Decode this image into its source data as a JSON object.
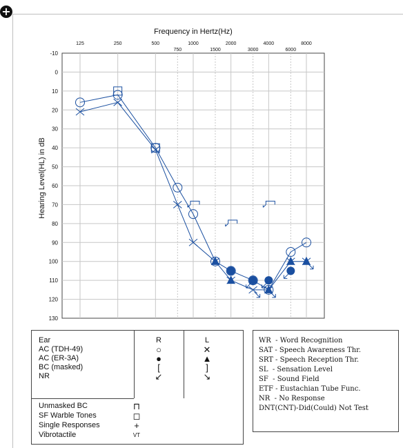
{
  "colors": {
    "line": "#1a4fa0",
    "grid": "#c6c6c6",
    "axis": "#444444"
  },
  "chart_data": {
    "type": "line",
    "title": "Frequency in Hertz(Hz)",
    "ylabel": "Hearing Level(HL) in dB",
    "ylim": [
      -10,
      130
    ],
    "y_inverted": true,
    "y_ticks": [
      "-10",
      "0",
      "10",
      "20",
      "30",
      "40",
      "50",
      "60",
      "70",
      "80",
      "90",
      "100",
      "110",
      "120",
      "130"
    ],
    "x_ticks_main": [
      "125",
      "250",
      "500",
      "1000",
      "2000",
      "4000",
      "8000"
    ],
    "x_ticks_inter": [
      "750",
      "1500",
      "3000",
      "6000"
    ],
    "grid": true,
    "series": [
      {
        "ear": "right",
        "kind": "AC (TDH-49)",
        "marker": "circle-open",
        "x": [
          125,
          250,
          500,
          750,
          1000,
          1500,
          2000,
          3000,
          4000,
          6000,
          8000
        ],
        "y": [
          16,
          12,
          40,
          61,
          75,
          100,
          105,
          110,
          115,
          95,
          90
        ],
        "connect": true
      },
      {
        "ear": "left",
        "kind": "AC (TDH-49)",
        "marker": "x",
        "x": [
          125,
          250,
          500,
          750,
          1000,
          1500,
          2000,
          3000,
          4000,
          6000,
          8000
        ],
        "y": [
          21,
          16,
          41,
          70,
          90,
          100,
          110,
          115,
          115,
          100,
          100
        ],
        "connect": true
      },
      {
        "ear": "right",
        "kind": "AC (ER-3A)",
        "marker": "circle-filled",
        "x": [
          2000,
          3000,
          4000,
          6000
        ],
        "y": [
          105,
          110,
          110,
          105
        ],
        "connect": false
      },
      {
        "ear": "left",
        "kind": "AC (ER-3A)",
        "marker": "triangle-filled",
        "x": [
          1500,
          2000,
          3000,
          4000,
          6000,
          8000
        ],
        "y": [
          100,
          110,
          110,
          115,
          100,
          100
        ],
        "connect": false
      },
      {
        "kind": "SF Warble Tones",
        "marker": "square-open",
        "x": [
          250,
          500
        ],
        "y": [
          10,
          40
        ],
        "connect": false
      },
      {
        "ear": "right",
        "kind": "NR",
        "marker": "arrow-left",
        "x": [
          3000,
          4000,
          6000
        ],
        "y": [
          110,
          110,
          105
        ],
        "connect": false
      },
      {
        "ear": "left",
        "kind": "NR",
        "marker": "arrow-right",
        "x": [
          3000,
          4000,
          8000
        ],
        "y": [
          115,
          115,
          100
        ],
        "connect": false
      },
      {
        "ear": "right",
        "kind": "Unmasked BC",
        "marker": "bracket-right",
        "x": [
          1000,
          2000,
          4000
        ],
        "y": [
          70,
          80,
          70
        ],
        "connect": false
      }
    ]
  },
  "legend": {
    "header": {
      "ear": "Ear",
      "r": "R",
      "l": "L"
    },
    "rows": [
      {
        "label": "AC (TDH-49)",
        "r": "○",
        "l": "✕"
      },
      {
        "label": "AC (ER-3A)",
        "r": "●",
        "l": "▲"
      },
      {
        "label": "BC (masked)",
        "r": "[",
        "l": "]"
      },
      {
        "label": "NR",
        "r": "↙",
        "l": "↘"
      }
    ],
    "other": [
      {
        "label": "Unmasked BC",
        "sym": "⊓"
      },
      {
        "label": "SF Warble Tones",
        "sym": "◻"
      },
      {
        "label": "Single Responses",
        "sym": "+"
      },
      {
        "label": "Vibrotactile",
        "sym": "VT"
      }
    ]
  },
  "abbreviations": [
    "WR  - Word Recognition",
    "SAT - Speech Awareness Thr.",
    "SRT - Speech Reception Thr.",
    "SL  - Sensation Level",
    "SF  - Sound Field",
    "ETF - Eustachian Tube Func.",
    "NR  - No Response",
    "DNT(CNT)-Did(Could) Not Test"
  ]
}
